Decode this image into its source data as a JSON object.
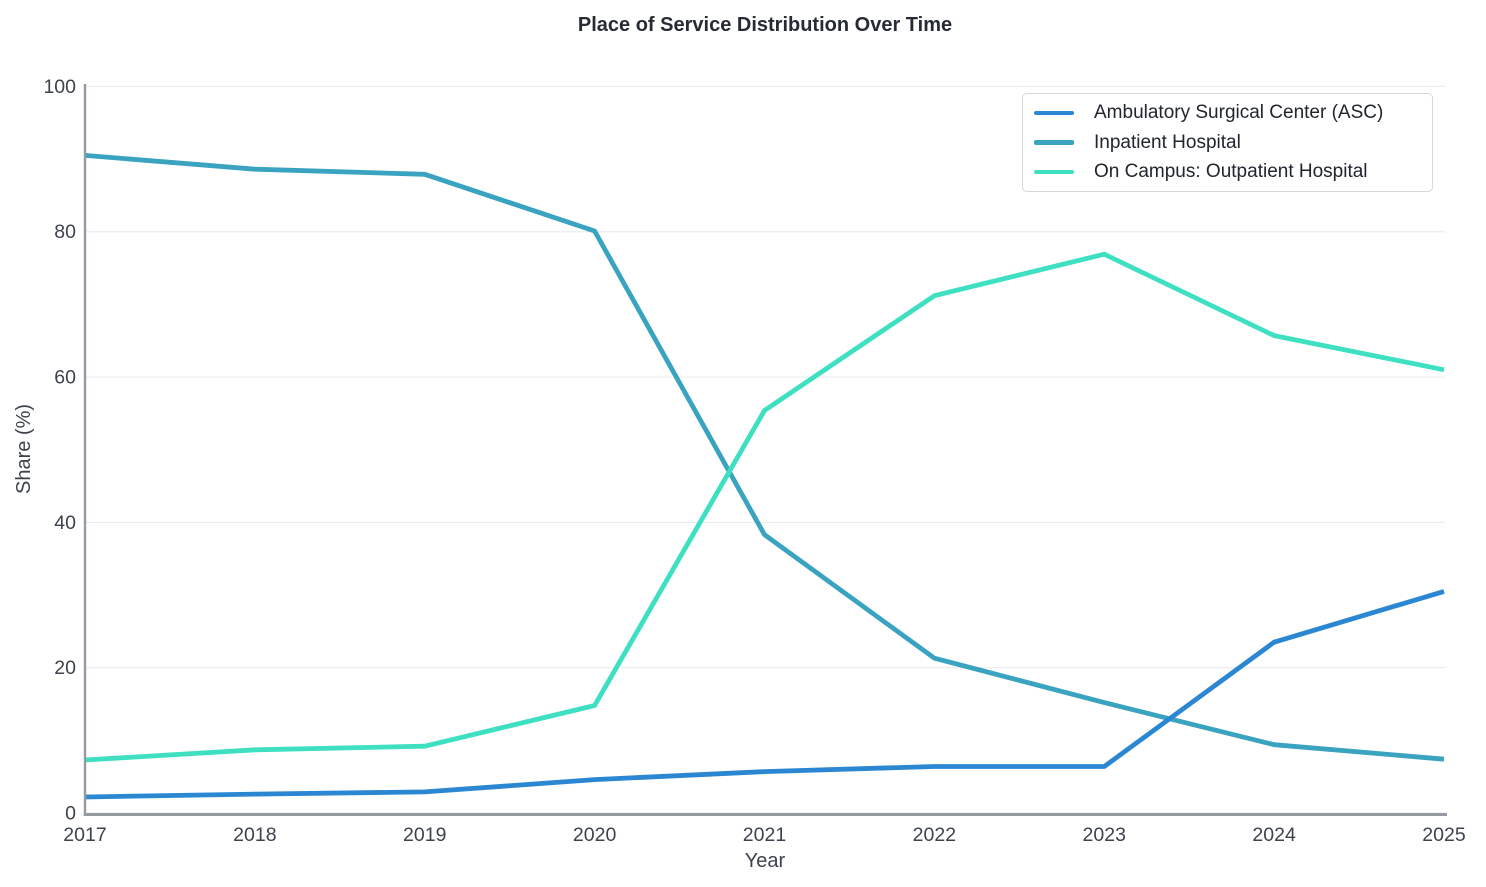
{
  "title": "Place of Service Distribution Over Time",
  "chart_data": {
    "type": "line",
    "title": "Place of Service Distribution Over Time",
    "xlabel": "Year",
    "ylabel": "Share (%)",
    "x": [
      2017,
      2018,
      2019,
      2020,
      2021,
      2022,
      2023,
      2024,
      2025
    ],
    "xticks": [
      2017,
      2018,
      2019,
      2020,
      2021,
      2022,
      2023,
      2024,
      2025
    ],
    "yticks": [
      0,
      20,
      40,
      60,
      80,
      100
    ],
    "xlim": [
      2017,
      2025
    ],
    "ylim": [
      0,
      100
    ],
    "grid": "horizontal",
    "legend_position": "top-right",
    "series": [
      {
        "name": "Ambulatory Surgical Center (ASC)",
        "color": "#2b87d1",
        "values": [
          2.2,
          2.6,
          2.9,
          4.6,
          5.7,
          6.4,
          6.4,
          23.5,
          30.5
        ]
      },
      {
        "name": "Inpatient Hospital",
        "color": "#39a3c0",
        "values": [
          90.5,
          88.6,
          87.9,
          80.1,
          38.3,
          21.3,
          15.2,
          9.4,
          7.4
        ]
      },
      {
        "name": "On Campus: Outpatient Hospital",
        "color": "#3ee0c1",
        "values": [
          7.3,
          8.7,
          9.2,
          14.8,
          55.4,
          71.2,
          76.9,
          65.7,
          61.0
        ]
      }
    ],
    "draw_order": [
      1,
      2,
      0
    ]
  },
  "colors": {
    "background": "#ffffff",
    "grid": "#ebecef",
    "spine": "#949aa2",
    "tick_text": "#3d434d",
    "title_text": "#262b35",
    "legend_border": "#d4d7db",
    "legend_text": "#20252e"
  }
}
